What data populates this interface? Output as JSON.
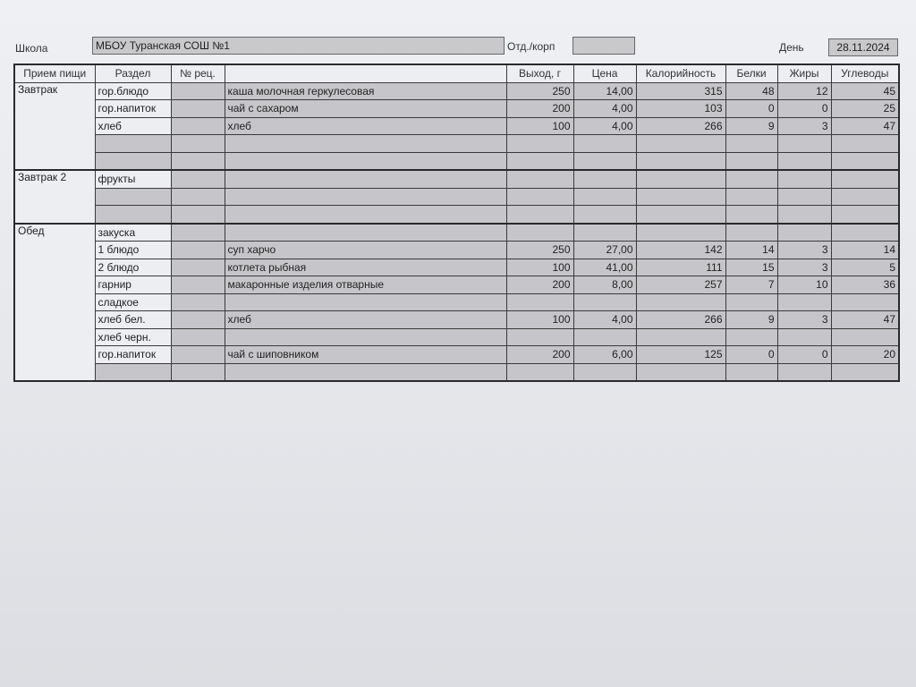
{
  "header": {
    "school_label": "Школа",
    "school_value": "МБОУ Туранская СОШ №1",
    "dept_label": "Отд./корп",
    "dept_value": "",
    "day_label": "День",
    "day_value": "28.11.2024"
  },
  "columns": [
    "Прием пищи",
    "Раздел",
    "№ рец.",
    "",
    "Выход, г",
    "Цена",
    "Калорийность",
    "Белки",
    "Жиры",
    "Углеводы"
  ],
  "meals": [
    {
      "name": "Завтрак",
      "rows": [
        {
          "section": "гор.блюдо",
          "recipe": "",
          "dish": "каша молочная геркулесовая",
          "yield": "250",
          "price": "14,00",
          "kcal": "315",
          "protein": "48",
          "fat": "12",
          "carbs": "45"
        },
        {
          "section": "гор.напиток",
          "recipe": "",
          "dish": "чай с сахаром",
          "yield": "200",
          "price": "4,00",
          "kcal": "103",
          "protein": "0",
          "fat": "0",
          "carbs": "25"
        },
        {
          "section": "хлеб",
          "recipe": "",
          "dish": "хлеб",
          "yield": "100",
          "price": "4,00",
          "kcal": "266",
          "protein": "9",
          "fat": "3",
          "carbs": "47"
        },
        {
          "section": "",
          "recipe": "",
          "dish": "",
          "yield": "",
          "price": "",
          "kcal": "",
          "protein": "",
          "fat": "",
          "carbs": ""
        },
        {
          "section": "",
          "recipe": "",
          "dish": "",
          "yield": "",
          "price": "",
          "kcal": "",
          "protein": "",
          "fat": "",
          "carbs": ""
        }
      ]
    },
    {
      "name": "Завтрак 2",
      "rows": [
        {
          "section": "фрукты",
          "recipe": "",
          "dish": "",
          "yield": "",
          "price": "",
          "kcal": "",
          "protein": "",
          "fat": "",
          "carbs": ""
        },
        {
          "section": "",
          "recipe": "",
          "dish": "",
          "yield": "",
          "price": "",
          "kcal": "",
          "protein": "",
          "fat": "",
          "carbs": ""
        },
        {
          "section": "",
          "recipe": "",
          "dish": "",
          "yield": "",
          "price": "",
          "kcal": "",
          "protein": "",
          "fat": "",
          "carbs": ""
        }
      ]
    },
    {
      "name": "Обед",
      "rows": [
        {
          "section": "закуска",
          "recipe": "",
          "dish": "",
          "yield": "",
          "price": "",
          "kcal": "",
          "protein": "",
          "fat": "",
          "carbs": ""
        },
        {
          "section": "1 блюдо",
          "recipe": "",
          "dish": "суп харчо",
          "yield": "250",
          "price": "27,00",
          "kcal": "142",
          "protein": "14",
          "fat": "3",
          "carbs": "14"
        },
        {
          "section": "2 блюдо",
          "recipe": "",
          "dish": "котлета рыбная",
          "yield": "100",
          "price": "41,00",
          "kcal": "111",
          "protein": "15",
          "fat": "3",
          "carbs": "5"
        },
        {
          "section": "гарнир",
          "recipe": "",
          "dish": "макаронные изделия отварные",
          "yield": "200",
          "price": "8,00",
          "kcal": "257",
          "protein": "7",
          "fat": "10",
          "carbs": "36"
        },
        {
          "section": "сладкое",
          "recipe": "",
          "dish": "",
          "yield": "",
          "price": "",
          "kcal": "",
          "protein": "",
          "fat": "",
          "carbs": ""
        },
        {
          "section": "хлеб бел.",
          "recipe": "",
          "dish": "хлеб",
          "yield": "100",
          "price": "4,00",
          "kcal": "266",
          "protein": "9",
          "fat": "3",
          "carbs": "47"
        },
        {
          "section": "хлеб черн.",
          "recipe": "",
          "dish": "",
          "yield": "",
          "price": "",
          "kcal": "",
          "protein": "",
          "fat": "",
          "carbs": ""
        },
        {
          "section": "гор.напиток",
          "recipe": "",
          "dish": "чай с шиповником",
          "yield": "200",
          "price": "6,00",
          "kcal": "125",
          "protein": "0",
          "fat": "0",
          "carbs": "20"
        },
        {
          "section": "",
          "recipe": "",
          "dish": "",
          "yield": "",
          "price": "",
          "kcal": "",
          "protein": "",
          "fat": "",
          "carbs": ""
        }
      ]
    }
  ]
}
